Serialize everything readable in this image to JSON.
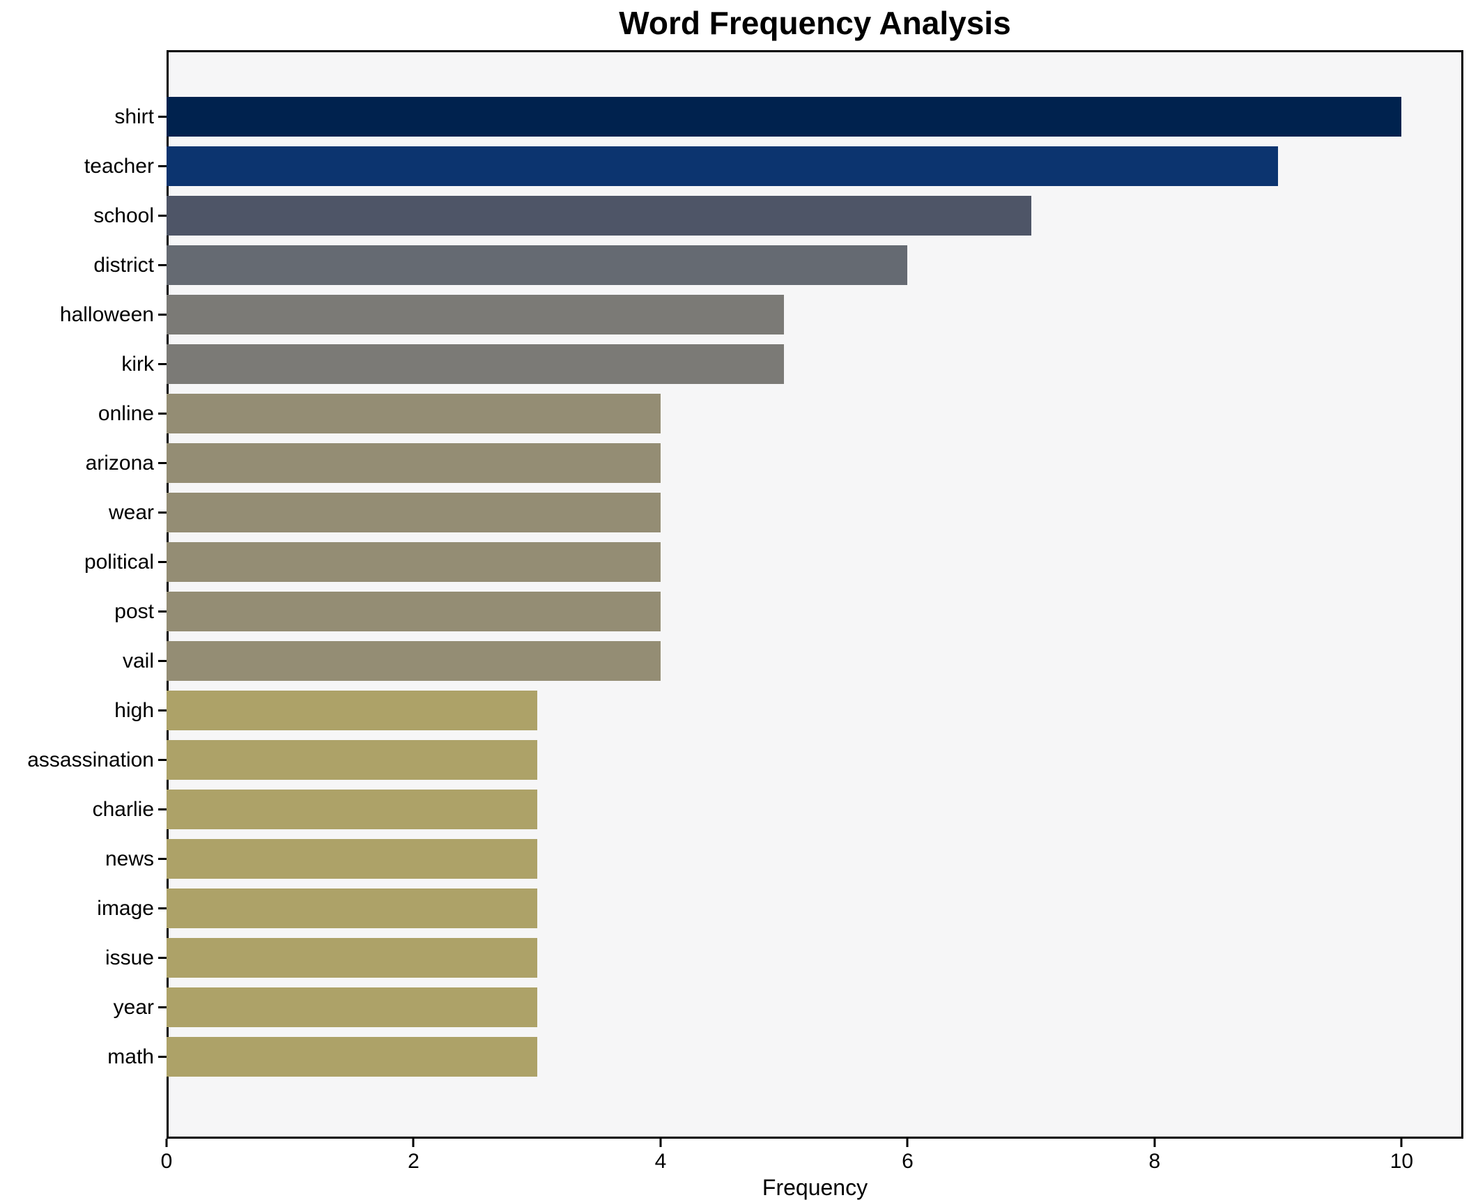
{
  "figure": {
    "title": "Word Frequency Analysis",
    "xlabel": "Frequency",
    "background_color": "#ffffff",
    "plot_background_color": "#f6f6f7",
    "axis_color": "#000000"
  },
  "chart_data": {
    "type": "bar",
    "orientation": "horizontal",
    "title": "Word Frequency Analysis",
    "xlabel": "Frequency",
    "ylabel": "",
    "categories": [
      "shirt",
      "teacher",
      "school",
      "district",
      "halloween",
      "kirk",
      "online",
      "arizona",
      "wear",
      "political",
      "post",
      "vail",
      "high",
      "assassination",
      "charlie",
      "news",
      "image",
      "issue",
      "year",
      "math"
    ],
    "values": [
      10,
      9,
      7,
      6,
      5,
      5,
      4,
      4,
      4,
      4,
      4,
      4,
      3,
      3,
      3,
      3,
      3,
      3,
      3,
      3
    ],
    "bar_colors": [
      "#00224e",
      "#0c346f",
      "#4e5567",
      "#656a72",
      "#7b7a76",
      "#7b7a76",
      "#948d74",
      "#948d74",
      "#948d74",
      "#948d74",
      "#948d74",
      "#948d74",
      "#ada268",
      "#ada268",
      "#ada268",
      "#ada268",
      "#ada268",
      "#ada268",
      "#ada268",
      "#ada268"
    ],
    "xlim": [
      0,
      10.5
    ],
    "xticks": [
      0,
      2,
      4,
      6,
      8,
      10
    ],
    "grid": false,
    "legend_position": "none"
  }
}
